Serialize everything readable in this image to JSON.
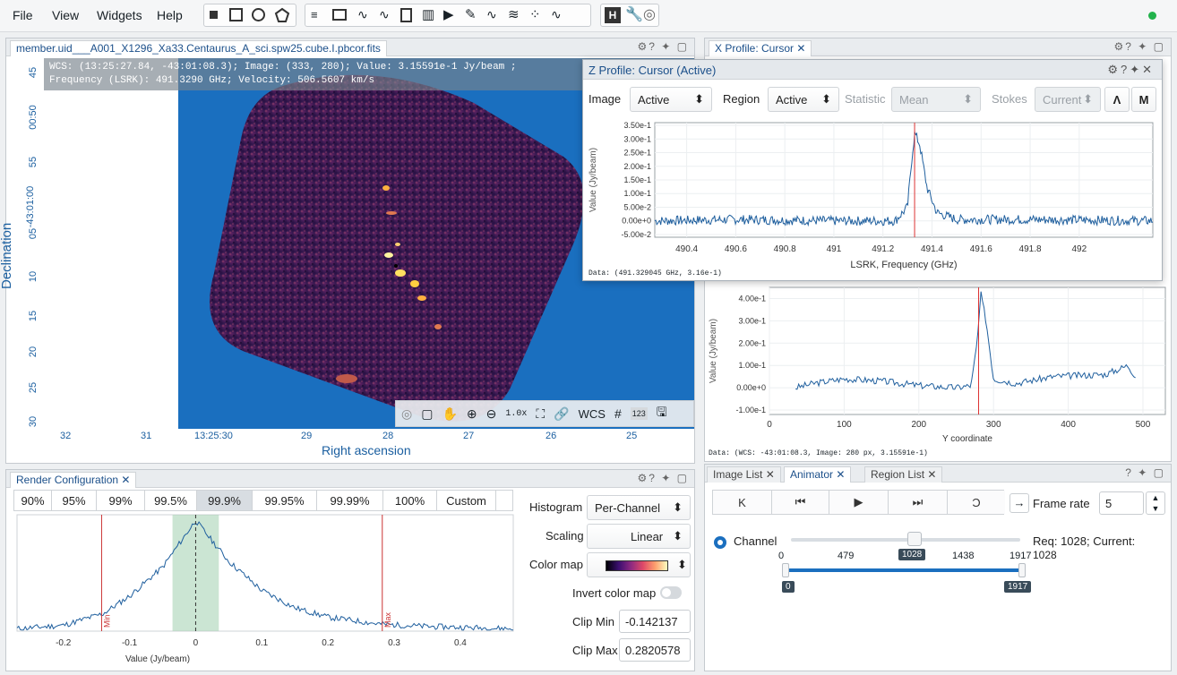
{
  "menu": {
    "file": "File",
    "view": "View",
    "widgets": "Widgets",
    "help": "Help"
  },
  "status_dot_color": "#22b24c",
  "image_view": {
    "tab_title": "member.uid___A001_X1296_Xa33.Centaurus_A_sci.spw25.cube.I.pbcor.fits",
    "cursor_info_line1": "WCS: (13:25:27.84, -43:01:08.3); Image: (333, 280); Value:  3.15591e-1 Jy/beam ;",
    "cursor_info_line2": "Frequency (LSRK): 491.3290 GHz; Velocity: 506.5607 km/s",
    "ylabel": "Declination",
    "xlabel": "Right ascension",
    "y_ticks": [
      "45",
      "00:50",
      "55",
      "-43:01:00",
      "05",
      "10",
      "15",
      "20",
      "25",
      "30"
    ],
    "x_ticks": [
      "32",
      "31",
      "13:25:30",
      "29",
      "28",
      "27",
      "26",
      "25"
    ],
    "toolbar": {
      "zoom_level": "1.0x",
      "wcs": "WCS",
      "grid_num": "123"
    }
  },
  "x_profile": {
    "tab_title": "X Profile: Cursor"
  },
  "z_profile": {
    "title": "Z Profile: Cursor (Active)",
    "image_label": "Image",
    "image_value": "Active",
    "region_label": "Region",
    "region_value": "Active",
    "statistic_label": "Statistic",
    "statistic_value": "Mean",
    "stokes_label": "Stokes",
    "stokes_value": "Current",
    "ylabel": "Value (Jy/beam)",
    "xlabel": "LSRK, Frequency (GHz)",
    "data_readout": "Data: (491.329045 GHz, 3.16e-1)",
    "y_ticks": [
      "3.50e-1",
      "3.00e-1",
      "2.50e-1",
      "2.00e-1",
      "1.50e-1",
      "1.00e-1",
      "5.00e-2",
      "0.00e+0",
      "-5.00e-2"
    ],
    "x_ticks": [
      "490.4",
      "490.6",
      "490.8",
      "491",
      "491.2",
      "491.4",
      "491.6",
      "491.8",
      "492"
    ],
    "m_button": "M"
  },
  "y_profile": {
    "ylabel": "Value (Jy/beam)",
    "xlabel": "Y coordinate",
    "y_ticks": [
      "4.00e-1",
      "3.00e-1",
      "2.00e-1",
      "1.00e-1",
      "0.00e+0",
      "-1.00e-1"
    ],
    "x_ticks": [
      "0",
      "100",
      "200",
      "300",
      "400",
      "500"
    ],
    "data_readout": "Data: (WCS: -43:01:08.3, Image: 280 px, 3.15591e-1)"
  },
  "render_config": {
    "tab_title": "Render Configuration",
    "percentiles": [
      "90%",
      "95%",
      "99%",
      "99.5%",
      "99.9%",
      "99.95%",
      "99.99%",
      "100%",
      "Custom"
    ],
    "active_percentile": "99.9%",
    "histogram_label": "Histogram",
    "histogram_value": "Per-Channel",
    "scaling_label": "Scaling",
    "scaling_value": "Linear",
    "colormap_label": "Color map",
    "invert_label": "Invert color map",
    "clip_min_label": "Clip Min",
    "clip_min_value": "-0.142137",
    "clip_max_label": "Clip Max",
    "clip_max_value": "0.2820578",
    "xlabel": "Value (Jy/beam)",
    "x_ticks": [
      "-0.2",
      "-0.1",
      "0",
      "0.1",
      "0.2",
      "0.3",
      "0.4"
    ],
    "min_marker": "Min",
    "max_marker": "Max"
  },
  "animator": {
    "tabs": [
      "Image List",
      "Animator",
      "Region List"
    ],
    "frame_rate_label": "Frame rate",
    "frame_rate_value": "5",
    "channel_label": "Channel",
    "status": "Req: 1028; Current:",
    "current_value": "1028",
    "slider_ticks": [
      "0",
      "479",
      "1438",
      "1917"
    ],
    "slider_value": "1028",
    "range_min": "0",
    "range_max": "1917"
  },
  "chart_data": [
    {
      "type": "line",
      "title": "",
      "xlabel": "LSRK, Frequency (GHz)",
      "ylabel": "Value (Jy/beam)",
      "xlim": [
        490.27,
        492.3
      ],
      "ylim": [
        -0.06,
        0.36
      ],
      "series": [
        {
          "x": [
            490.27,
            490.6,
            491.0,
            491.25,
            491.3,
            491.32,
            491.33,
            491.35,
            491.38,
            491.42,
            491.5,
            491.8,
            492.3
          ],
          "values": [
            0.0,
            0.005,
            0.0,
            0.0,
            0.05,
            0.25,
            0.32,
            0.28,
            0.12,
            0.03,
            0.005,
            0.005,
            0.0
          ]
        }
      ],
      "cursor_x": 491.329
    },
    {
      "type": "line",
      "xlabel": "Y coordinate",
      "ylabel": "Value (Jy/beam)",
      "xlim": [
        0,
        530
      ],
      "ylim": [
        -0.12,
        0.45
      ],
      "series": [
        {
          "x": [
            35,
            60,
            100,
            150,
            200,
            250,
            270,
            278,
            283,
            290,
            300,
            330,
            380,
            450,
            480,
            490
          ],
          "values": [
            0.0,
            0.02,
            0.04,
            0.03,
            0.01,
            0.0,
            0.01,
            0.2,
            0.42,
            0.3,
            0.04,
            0.02,
            0.05,
            0.06,
            0.1,
            0.05
          ]
        }
      ],
      "cursor_x": 280
    },
    {
      "type": "line",
      "xlabel": "Value (Jy/beam)",
      "xlim": [
        -0.27,
        0.48
      ],
      "series": [
        {
          "x": [
            -0.27,
            -0.2,
            -0.14,
            -0.1,
            -0.05,
            0.0,
            0.05,
            0.1,
            0.15,
            0.2,
            0.28,
            0.35,
            0.48
          ],
          "values": [
            0.02,
            0.05,
            0.15,
            0.3,
            0.55,
            0.95,
            0.6,
            0.35,
            0.2,
            0.12,
            0.06,
            0.04,
            0.02
          ]
        }
      ],
      "clip_min": -0.142137,
      "clip_max": 0.2820578
    }
  ]
}
